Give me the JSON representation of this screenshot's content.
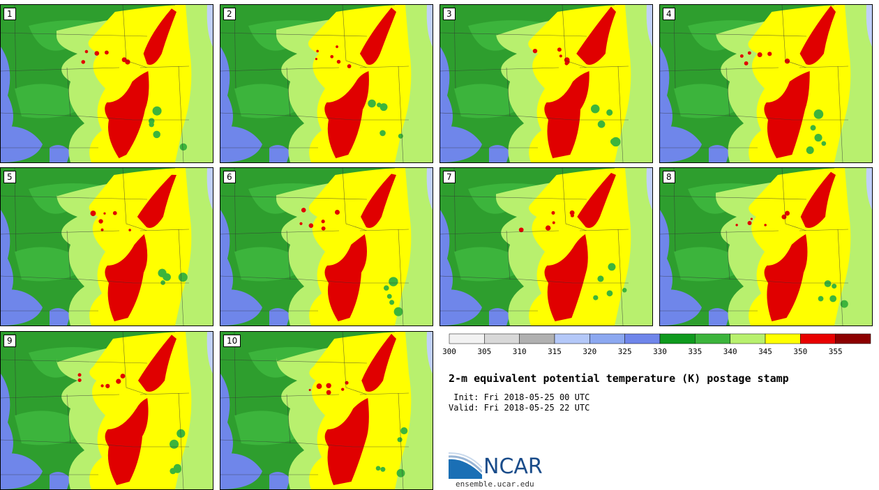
{
  "panels": [
    {
      "label": "1"
    },
    {
      "label": "2"
    },
    {
      "label": "3"
    },
    {
      "label": "4"
    },
    {
      "label": "5"
    },
    {
      "label": "6"
    },
    {
      "label": "7"
    },
    {
      "label": "8"
    },
    {
      "label": "9"
    },
    {
      "label": "10"
    }
  ],
  "colorbar": {
    "colors": [
      "#f2f2f2",
      "#d8d8d8",
      "#b0b0b0",
      "#b4c8f8",
      "#8ca8f0",
      "#6f86ea",
      "#0f9a1e",
      "#3cb43c",
      "#b8f06e",
      "#ffff00",
      "#e80000",
      "#8c0000"
    ],
    "ticks": [
      "300",
      "305",
      "310",
      "315",
      "320",
      "325",
      "330",
      "335",
      "340",
      "345",
      "350",
      "355"
    ]
  },
  "palette": {
    "land_dark_green": "#2e9e2e",
    "land_mid_green": "#3cb43c",
    "land_light_green": "#b8f06e",
    "yellow": "#ffff00",
    "red": "#e00000",
    "blue": "#6f86ea",
    "lake": "#c0d0f8"
  },
  "title": "2-m equivalent potential temperature (K) postage stamp",
  "init_line": " Init: Fri 2018-05-25 00 UTC",
  "valid_line": "Valid: Fri 2018-05-25 22 UTC",
  "logo": {
    "name": "NCAR",
    "url": "ensemble.ucar.edu"
  }
}
